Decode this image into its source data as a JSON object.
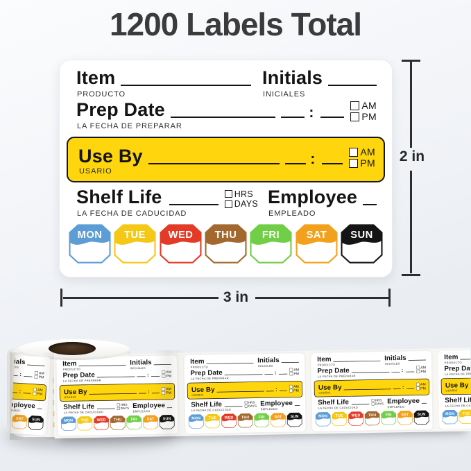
{
  "title": "1200 Labels Total",
  "dimensions": {
    "height_label": "2 in",
    "width_label": "3 in"
  },
  "label": {
    "item": "Item",
    "item_sub": "PRODUCTO",
    "initials": "Initials",
    "initials_sub": "INICIALES",
    "prep_date": "Prep Date",
    "prep_date_sub": "LA FECHA DE PREPARAR",
    "use_by": "Use By",
    "use_by_sub": "USARIO",
    "shelf_life": "Shelf Life",
    "shelf_life_sub": "LA FECHA DE CADUCIDAD",
    "employee": "Employee",
    "employee_sub": "EMPLEADO",
    "am": "AM",
    "pm": "PM",
    "hrs": "HRS",
    "days_unit": "DAYS",
    "colon": ":",
    "days": [
      {
        "name": "MON",
        "color": "#5D9DD6"
      },
      {
        "name": "TUE",
        "color": "#F6C816"
      },
      {
        "name": "WED",
        "color": "#E33B27"
      },
      {
        "name": "THU",
        "color": "#A3682E"
      },
      {
        "name": "FRI",
        "color": "#70CE47"
      },
      {
        "name": "SAT",
        "color": "#F3A11C"
      },
      {
        "name": "SUN",
        "color": "#151515"
      }
    ]
  },
  "colors": {
    "accent_yellow": "#FFD60D",
    "title_text": "#3B3B3B",
    "line_dark": "#161616",
    "day_text": "#FFFFFF"
  }
}
